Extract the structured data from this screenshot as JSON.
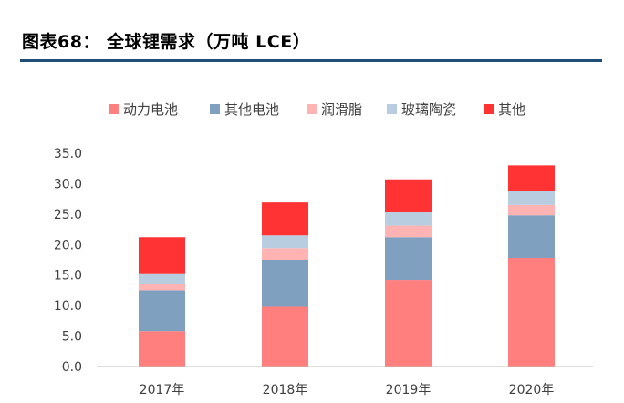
{
  "figure": {
    "title": "图表68：  全球锂需求（万吨 LCE）"
  },
  "colors": {
    "title_rule": "#1f4e79",
    "axis": "#bfbfbf"
  },
  "chart_data": {
    "type": "bar",
    "stacked": true,
    "title": "",
    "xlabel": "",
    "ylabel": "",
    "categories": [
      "2017年",
      "2018年",
      "2019年",
      "2020年"
    ],
    "ylim": [
      0,
      35
    ],
    "yticks": [
      "0.0",
      "5.0",
      "10.0",
      "15.0",
      "20.0",
      "25.0",
      "30.0",
      "35.0"
    ],
    "grid": false,
    "legend_position": "top",
    "series": [
      {
        "name": "动力电池",
        "color": "#ff7f7f",
        "values": [
          5.8,
          9.8,
          14.2,
          17.8
        ]
      },
      {
        "name": "其他电池",
        "color": "#7fa1bf",
        "values": [
          6.7,
          7.7,
          7.0,
          7.0
        ]
      },
      {
        "name": "润滑脂",
        "color": "#ffb3b3",
        "values": [
          1.0,
          1.9,
          1.9,
          1.7
        ]
      },
      {
        "name": "玻璃陶瓷",
        "color": "#b9cde0",
        "values": [
          1.8,
          2.1,
          2.3,
          2.3
        ]
      },
      {
        "name": "其他",
        "color": "#ff3333",
        "values": [
          5.9,
          5.4,
          5.3,
          4.2
        ]
      }
    ]
  }
}
